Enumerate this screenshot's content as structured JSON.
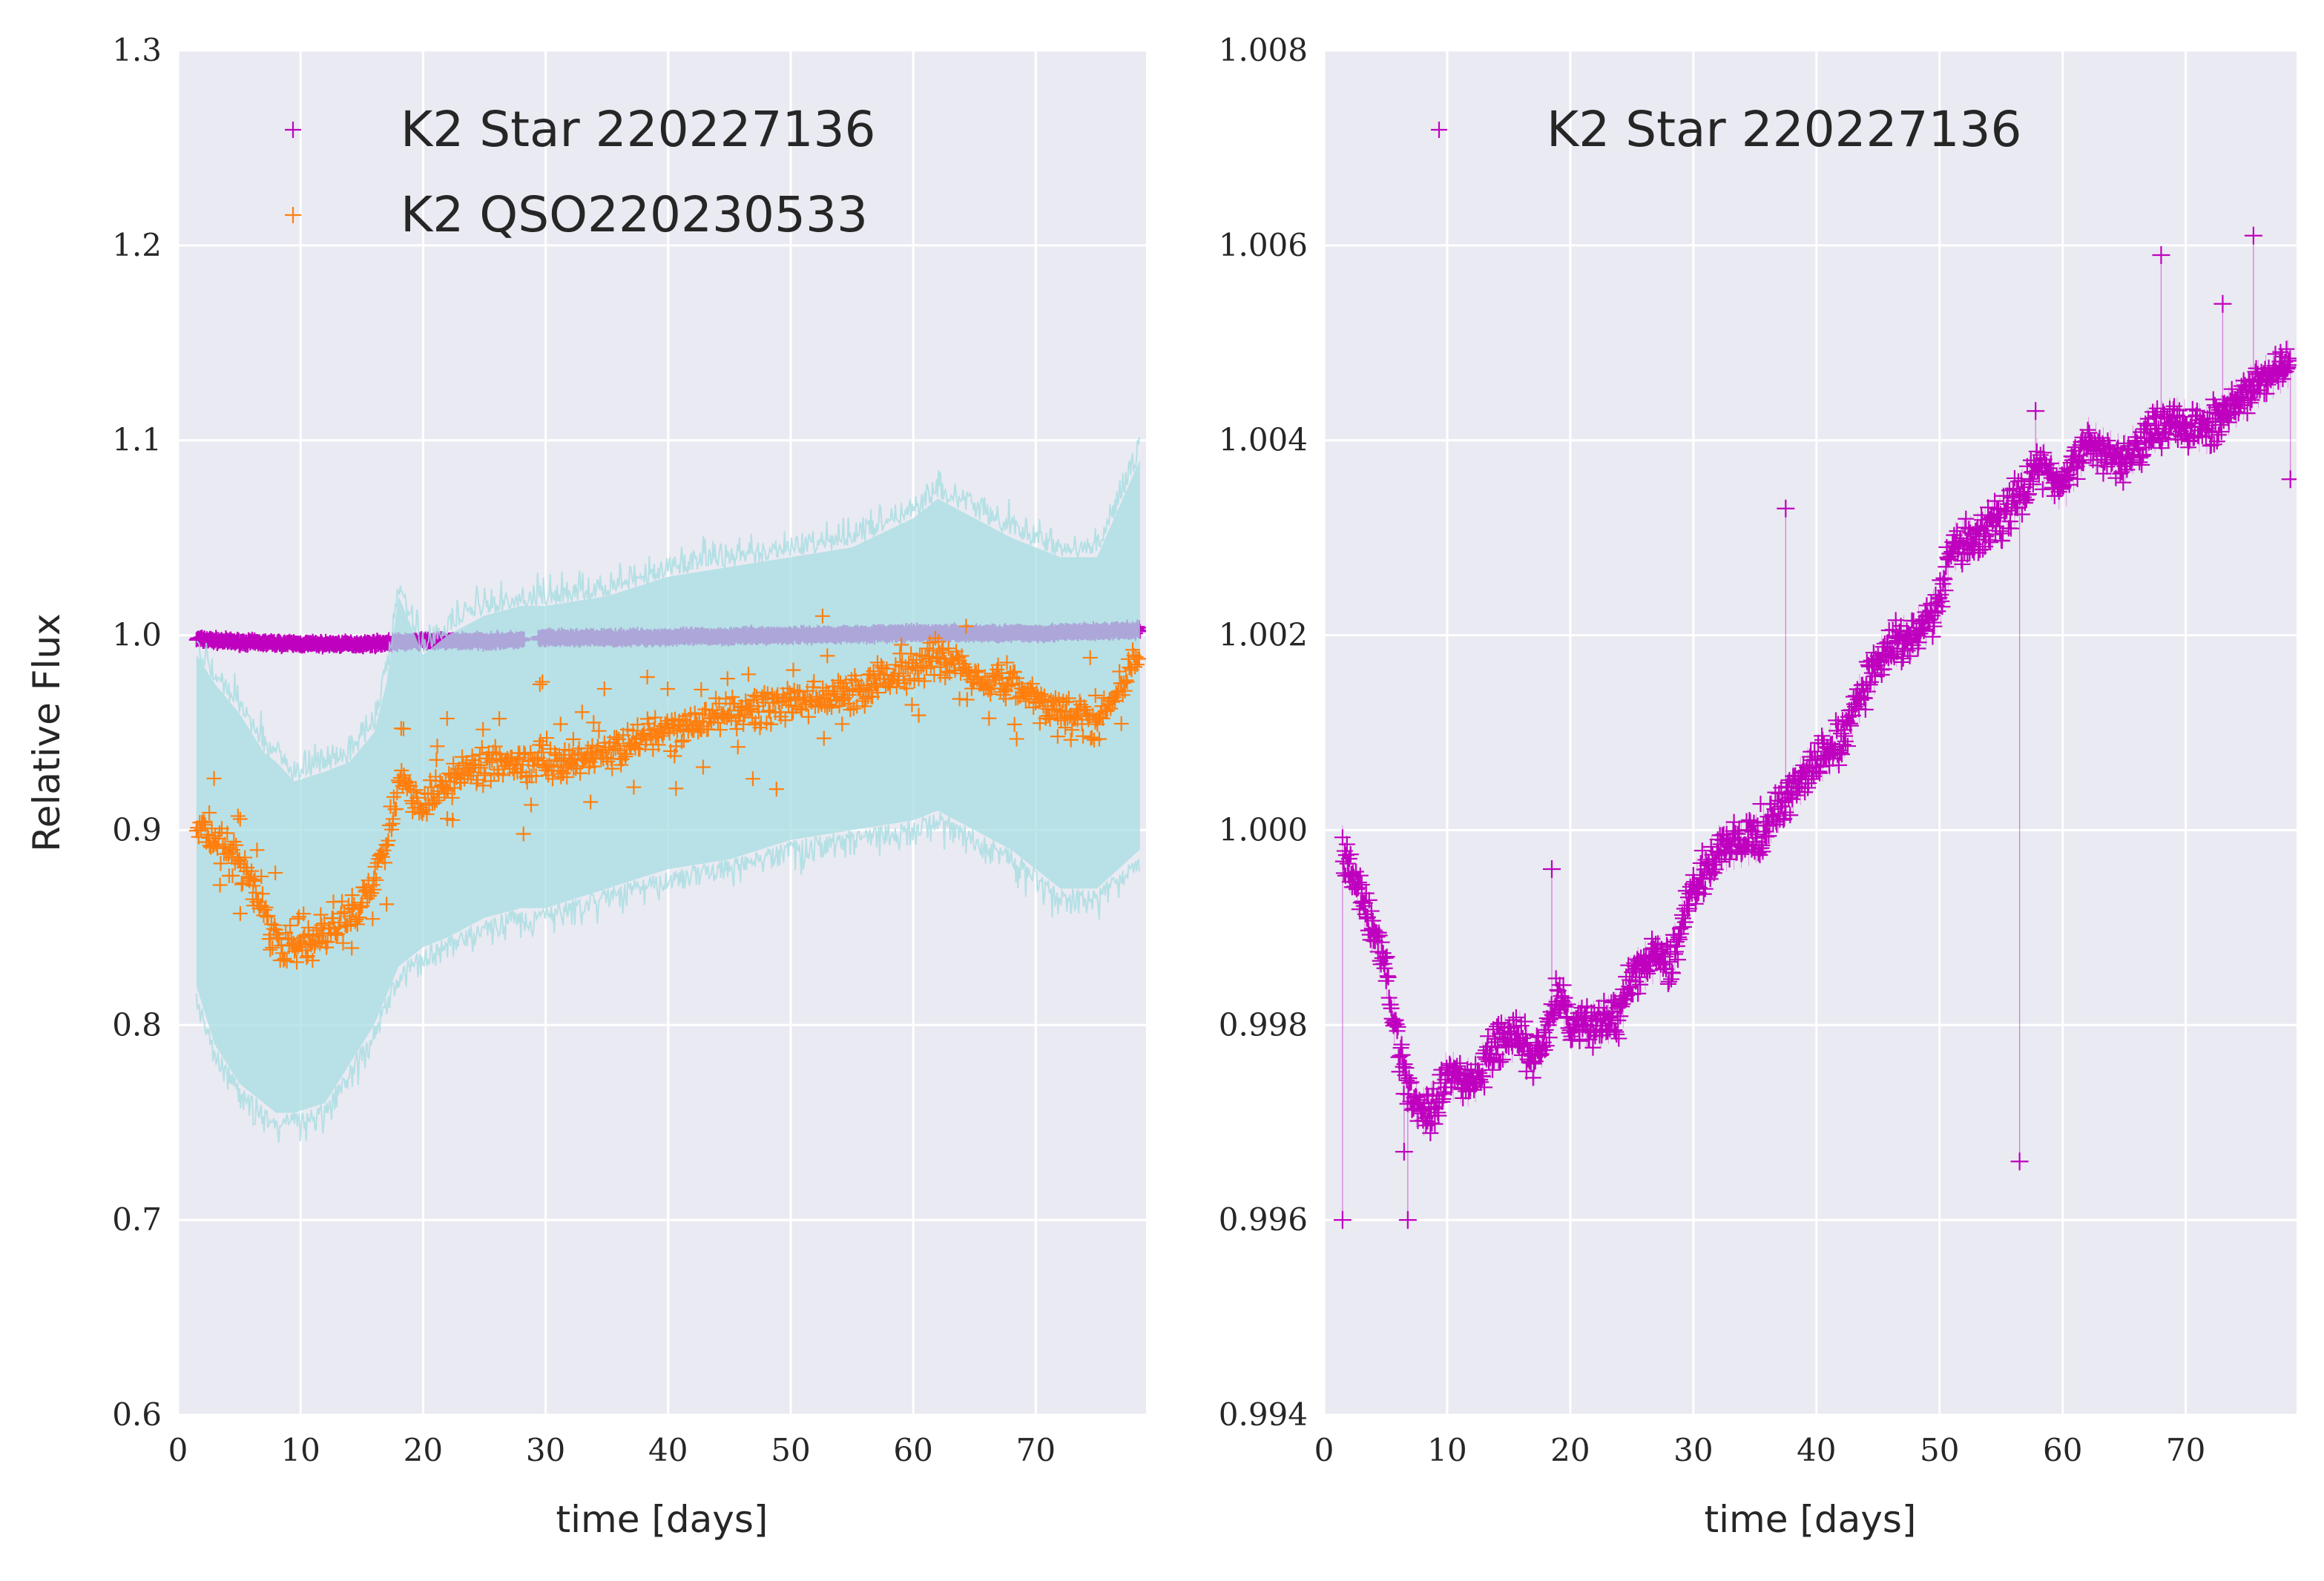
{
  "colors": {
    "panel_bg": "#eaeaf2",
    "grid": "#ffffff",
    "star": "#bf00bf",
    "qso": "#ff7f0e",
    "qso_band": "#a6dde1"
  },
  "chart_data": [
    {
      "type": "scatter",
      "marker": "plus",
      "xlabel": "time [days]",
      "ylabel": "Relative Flux",
      "xlim": [
        0,
        79
      ],
      "ylim": [
        0.6,
        1.3
      ],
      "xticks": [
        "0",
        "10",
        "20",
        "30",
        "40",
        "50",
        "60",
        "70"
      ],
      "yticks": [
        "0.6",
        "0.7",
        "0.8",
        "0.9",
        "1.0",
        "1.1",
        "1.2",
        "1.3"
      ],
      "grid": true,
      "legend_position": "top-left",
      "series": [
        {
          "name": "K2 Star 220227136",
          "color": "#bf00bf",
          "x": [
            1.5,
            5,
            10,
            15,
            20,
            25,
            28,
            30,
            40,
            50,
            60,
            70,
            78.5
          ],
          "y": [
            0.998,
            0.9965,
            0.9955,
            0.9955,
            0.997,
            0.997,
            0.9975,
            0.9985,
            0.999,
            1.0,
            1.001,
            1.001,
            1.0025
          ]
        },
        {
          "name": "K2 QSO220230533",
          "color": "#ff7f0e",
          "x": [
            1.5,
            3,
            5,
            7,
            8,
            9.5,
            12,
            14,
            16,
            17,
            18,
            20,
            22,
            25,
            28,
            30,
            35,
            40,
            45,
            50,
            55,
            60,
            62,
            65,
            68,
            72,
            75,
            78.5
          ],
          "y": [
            0.905,
            0.895,
            0.885,
            0.86,
            0.845,
            0.838,
            0.845,
            0.855,
            0.875,
            0.895,
            0.925,
            0.915,
            0.925,
            0.935,
            0.935,
            0.935,
            0.94,
            0.95,
            0.96,
            0.965,
            0.97,
            0.985,
            0.99,
            0.98,
            0.975,
            0.96,
            0.955,
            0.99
          ],
          "y_lower": [
            0.82,
            0.79,
            0.77,
            0.76,
            0.755,
            0.755,
            0.76,
            0.78,
            0.8,
            0.815,
            0.83,
            0.84,
            0.845,
            0.855,
            0.86,
            0.86,
            0.87,
            0.88,
            0.885,
            0.895,
            0.9,
            0.905,
            0.91,
            0.9,
            0.89,
            0.87,
            0.87,
            0.89
          ],
          "y_upper": [
            0.99,
            0.975,
            0.96,
            0.94,
            0.935,
            0.925,
            0.93,
            0.935,
            0.95,
            0.975,
            1.02,
            0.99,
            1.0,
            1.01,
            1.015,
            1.015,
            1.02,
            1.03,
            1.035,
            1.04,
            1.045,
            1.06,
            1.07,
            1.06,
            1.05,
            1.04,
            1.04,
            1.09
          ]
        }
      ]
    },
    {
      "type": "scatter",
      "marker": "plus",
      "xlabel": "time [days]",
      "ylabel": "",
      "xlim": [
        0,
        79
      ],
      "ylim": [
        0.994,
        1.008
      ],
      "xticks": [
        "0",
        "10",
        "20",
        "30",
        "40",
        "50",
        "60",
        "70"
      ],
      "yticks": [
        "0.994",
        "0.996",
        "0.998",
        "1.000",
        "1.002",
        "1.004",
        "1.006",
        "1.008"
      ],
      "grid": true,
      "legend_position": "top-left",
      "series": [
        {
          "name": "K2 Star 220227136",
          "color": "#bf00bf",
          "x": [
            1.5,
            3,
            5,
            6,
            7,
            8,
            9,
            10,
            12,
            14,
            16,
            17,
            18,
            19,
            20,
            22,
            24,
            25,
            27,
            28,
            30,
            32,
            35,
            38,
            40,
            42,
            44,
            46,
            48,
            50,
            51,
            53,
            55,
            57,
            58,
            60,
            62,
            63,
            65,
            67,
            69,
            72,
            75,
            78.5
          ],
          "y": [
            0.9998,
            0.9993,
            0.9986,
            0.9978,
            0.9973,
            0.9971,
            0.9972,
            0.9975,
            0.9974,
            0.9978,
            0.9979,
            0.9976,
            0.9979,
            0.9983,
            0.998,
            0.998,
            0.9981,
            0.9985,
            0.9987,
            0.9986,
            0.9994,
            0.9998,
            0.9999,
            1.0004,
            1.0007,
            1.0009,
            1.0015,
            1.0019,
            1.002,
            1.0023,
            1.0029,
            1.003,
            1.0032,
            1.0035,
            1.0038,
            1.0035,
            1.004,
            1.0039,
            1.0038,
            1.0041,
            1.0042,
            1.0041,
            1.0045,
            1.0048
          ],
          "outliers": [
            {
              "x": 1.5,
              "y": 0.996
            },
            {
              "x": 6.8,
              "y": 0.996
            },
            {
              "x": 6.5,
              "y": 0.9967
            },
            {
              "x": 18.5,
              "y": 0.9996
            },
            {
              "x": 37.5,
              "y": 1.0033
            },
            {
              "x": 56.5,
              "y": 0.9966
            },
            {
              "x": 57.8,
              "y": 1.0043
            },
            {
              "x": 68,
              "y": 1.0059
            },
            {
              "x": 73,
              "y": 1.0054
            },
            {
              "x": 75.5,
              "y": 1.0061
            },
            {
              "x": 78.5,
              "y": 1.0036
            }
          ]
        }
      ]
    }
  ]
}
